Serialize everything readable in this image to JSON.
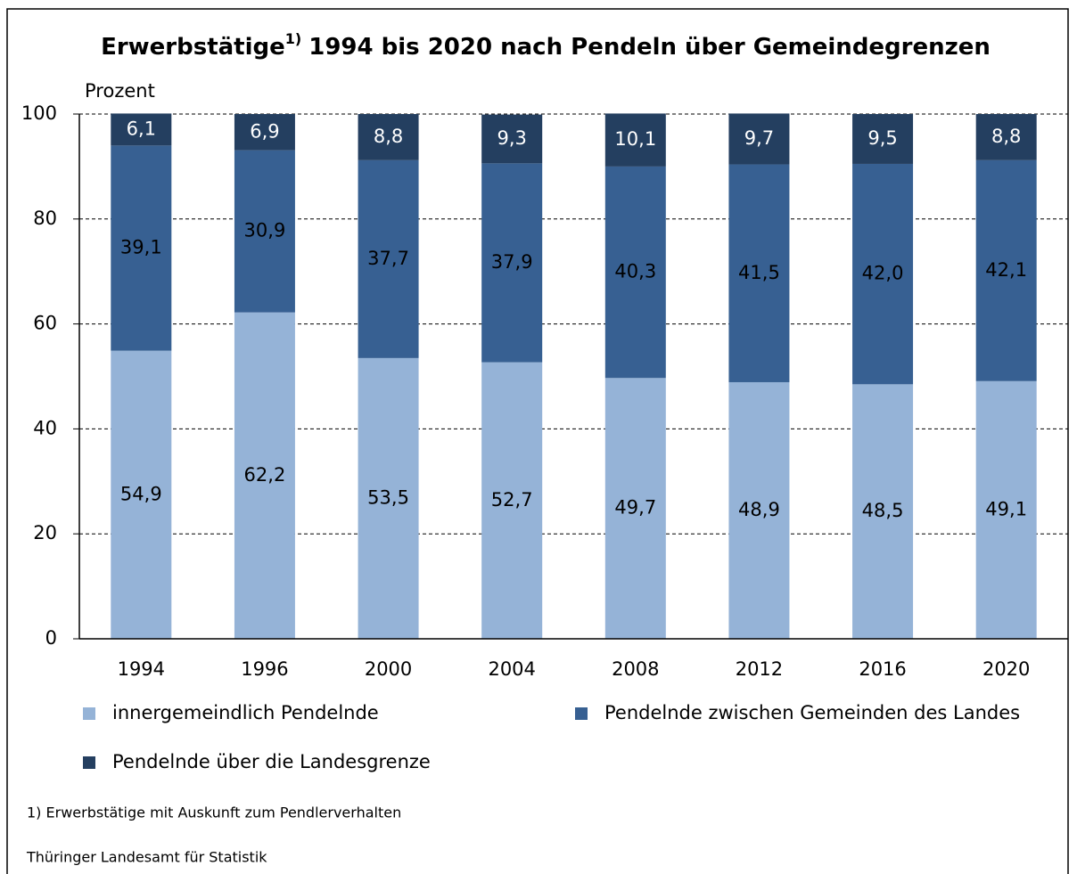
{
  "chart_data": {
    "type": "stacked_bar",
    "title": {
      "text": "Erwerbstätige",
      "sup": "1)",
      "rest": "1994 bis 2020 nach Pendeln über Gemeindegrenzen"
    },
    "ylabel": "Prozent",
    "categories": [
      "1994",
      "1996",
      "2000",
      "2004",
      "2008",
      "2012",
      "2016",
      "2020"
    ],
    "series": [
      {
        "name": "innergemeindlich Pendelnde",
        "color": "#95b3d7",
        "label_color": "#000000",
        "values": [
          54.9,
          62.2,
          53.5,
          52.7,
          49.7,
          48.9,
          48.5,
          49.1
        ],
        "value_labels": [
          "54,9",
          "62,2",
          "53,5",
          "52,7",
          "49,7",
          "48,9",
          "48,5",
          "49,1"
        ]
      },
      {
        "name": "Pendelnde zwischen Gemeinden des Landes",
        "color": "#376092",
        "label_color": "#000000",
        "values": [
          39.1,
          30.9,
          37.7,
          37.9,
          40.3,
          41.5,
          42.0,
          42.1
        ],
        "value_labels": [
          "39,1",
          "30,9",
          "37,7",
          "37,9",
          "40,3",
          "41,5",
          "42,0",
          "42,1"
        ]
      },
      {
        "name": "Pendelnde über die Landesgrenze",
        "color": "#243f60",
        "label_color": "#ffffff",
        "values": [
          6.1,
          6.9,
          8.8,
          9.3,
          10.1,
          9.7,
          9.5,
          8.8
        ],
        "value_labels": [
          "6,1",
          "6,9",
          "8,8",
          "9,3",
          "10,1",
          "9,7",
          "9,5",
          "8,8"
        ]
      }
    ],
    "ylim": [
      0,
      100
    ],
    "yticks": [
      0,
      20,
      40,
      60,
      80,
      100
    ],
    "grid": true,
    "footnote": "1) Erwerbstätige mit Auskunft zum Pendlerverhalten",
    "source": "Thüringer Landesamt für Statistik"
  }
}
